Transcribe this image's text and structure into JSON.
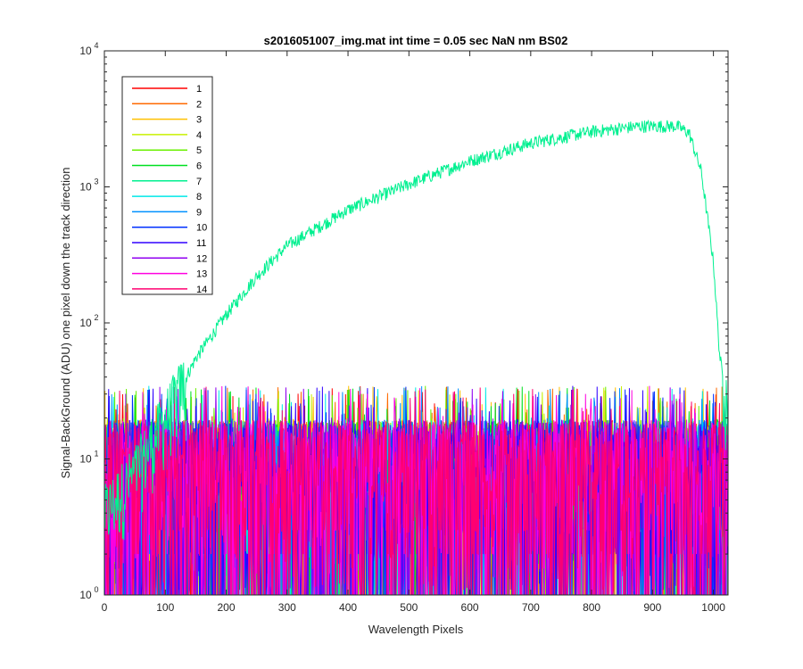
{
  "chart_data": {
    "type": "line",
    "title": "s2016051007_img.mat int time = 0.05 sec  NaN nm BS02",
    "xlabel": "Wavelength Pixels",
    "ylabel": "Signal-BackGround (ADU) one pixel down the track direction",
    "xlim": [
      0,
      1024
    ],
    "ylim": [
      1,
      10000
    ],
    "yscale": "log",
    "grid": false,
    "legend_position": "top-left",
    "x_ticks": [
      "0",
      "100",
      "200",
      "300",
      "400",
      "500",
      "600",
      "700",
      "800",
      "900",
      "1000"
    ],
    "x_tick_values": [
      0,
      100,
      200,
      300,
      400,
      500,
      600,
      700,
      800,
      900,
      1000
    ],
    "y_ticks": [
      {
        "base": "10",
        "exp": "0",
        "value": 1
      },
      {
        "base": "10",
        "exp": "1",
        "value": 10
      },
      {
        "base": "10",
        "exp": "2",
        "value": 100
      },
      {
        "base": "10",
        "exp": "3",
        "value": 1000
      },
      {
        "base": "10",
        "exp": "4",
        "value": 10000
      }
    ],
    "series": [
      {
        "name": "1",
        "color": "#ff0000",
        "baseline": 8
      },
      {
        "name": "2",
        "color": "#ff6a00",
        "baseline": 8
      },
      {
        "name": "3",
        "color": "#ffc000",
        "baseline": 8
      },
      {
        "name": "4",
        "color": "#c8f000",
        "baseline": 8
      },
      {
        "name": "5",
        "color": "#6af000",
        "baseline": 8
      },
      {
        "name": "6",
        "color": "#00e020",
        "baseline": 8
      },
      {
        "name": "7",
        "color": "#00f090",
        "baseline": 8,
        "profile_x": [
          0,
          50,
          100,
          150,
          200,
          250,
          300,
          400,
          500,
          600,
          700,
          800,
          880,
          940,
          960,
          980,
          1000,
          1010,
          1024
        ],
        "profile_y": [
          4,
          8,
          20,
          55,
          115,
          220,
          370,
          680,
          1050,
          1550,
          2100,
          2550,
          2800,
          2800,
          2500,
          1300,
          280,
          60,
          20
        ]
      },
      {
        "name": "8",
        "color": "#00e8e8",
        "baseline": 8
      },
      {
        "name": "9",
        "color": "#0090ff",
        "baseline": 8
      },
      {
        "name": "10",
        "color": "#0030ff",
        "baseline": 8
      },
      {
        "name": "11",
        "color": "#3000ff",
        "baseline": 8
      },
      {
        "name": "12",
        "color": "#9000f0",
        "baseline": 8
      },
      {
        "name": "13",
        "color": "#ff00e0",
        "baseline": 8
      },
      {
        "name": "14",
        "color": "#ff0070",
        "baseline": 8
      }
    ]
  }
}
